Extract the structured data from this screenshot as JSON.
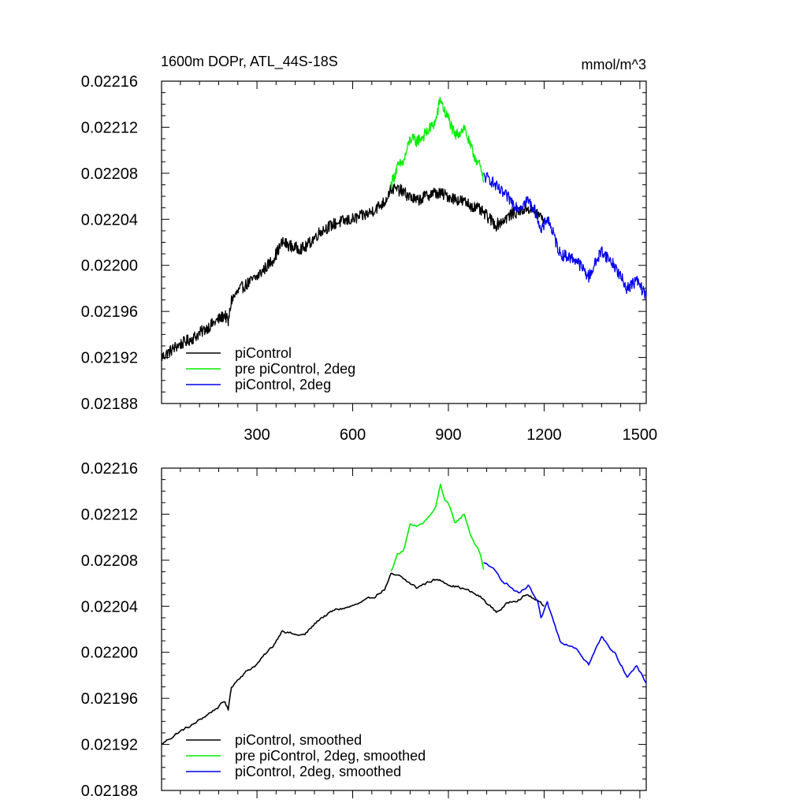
{
  "chart_data": [
    {
      "type": "line",
      "title": "1600m DOPr, ATL_44S-18S",
      "units": "mmol/m^3",
      "xlim": [
        1,
        1520
      ],
      "ylim": [
        0.02188,
        0.02216
      ],
      "xticks": [
        300,
        600,
        900,
        1200,
        1500
      ],
      "xtick_labels": [
        "300",
        "600",
        "900",
        "1200",
        "1500"
      ],
      "yticks": [
        0.02188,
        0.02192,
        0.02196,
        0.022,
        0.02204,
        0.02208,
        0.02212,
        0.02216
      ],
      "ytick_labels": [
        "0.02188",
        "0.02192",
        "0.02196",
        "0.02200",
        "0.02204",
        "0.02208",
        "0.02212",
        "0.02216"
      ],
      "legend_position": "bottom-left",
      "series": [
        {
          "name": "piControl",
          "color": "#000000",
          "x": [
            1,
            50,
            100,
            150,
            200,
            210,
            220,
            250,
            300,
            350,
            380,
            420,
            450,
            500,
            550,
            600,
            650,
            700,
            720,
            750,
            800,
            850,
            880,
            900,
            950,
            1000,
            1050,
            1100,
            1150,
            1200
          ],
          "y": [
            0.02192,
            0.02193,
            0.021937,
            0.021947,
            0.021957,
            0.02195,
            0.02197,
            0.02198,
            0.02199,
            0.022005,
            0.02202,
            0.022015,
            0.022015,
            0.02203,
            0.022037,
            0.02204,
            0.022045,
            0.022055,
            0.022067,
            0.022065,
            0.022056,
            0.022063,
            0.022062,
            0.02206,
            0.022055,
            0.022048,
            0.022035,
            0.022045,
            0.02205,
            0.02204
          ]
        },
        {
          "name": "pre piControl, 2deg",
          "color": "#00ee00",
          "x": [
            720,
            740,
            760,
            780,
            800,
            820,
            840,
            860,
            875,
            890,
            900,
            920,
            950,
            970,
            1000,
            1010
          ],
          "y": [
            0.02207,
            0.022085,
            0.02209,
            0.02211,
            0.022108,
            0.022112,
            0.022118,
            0.022125,
            0.022145,
            0.022132,
            0.022128,
            0.022112,
            0.02212,
            0.022102,
            0.022085,
            0.022072
          ]
        },
        {
          "name": "piControl, 2deg",
          "color": "#0000ee",
          "x": [
            1010,
            1030,
            1060,
            1090,
            1120,
            1150,
            1180,
            1190,
            1210,
            1250,
            1300,
            1340,
            1380,
            1420,
            1460,
            1490,
            1520
          ],
          "y": [
            0.022077,
            0.022075,
            0.022065,
            0.022058,
            0.02205,
            0.022057,
            0.022043,
            0.022028,
            0.022042,
            0.02201,
            0.022005,
            0.02199,
            0.022013,
            0.022,
            0.02198,
            0.021987,
            0.021973
          ]
        }
      ]
    },
    {
      "type": "line",
      "title": "",
      "xlim": [
        1,
        1520
      ],
      "ylim": [
        0.02188,
        0.02216
      ],
      "xticks": [
        300,
        600,
        900,
        1200,
        1500
      ],
      "yticks": [
        0.02188,
        0.02192,
        0.02196,
        0.022,
        0.02204,
        0.02208,
        0.02212,
        0.02216
      ],
      "ytick_labels": [
        "0.02188",
        "0.02192",
        "0.02196",
        "0.02200",
        "0.02204",
        "0.02208",
        "0.02212",
        "0.02216"
      ],
      "legend_position": "bottom-left",
      "series": [
        {
          "name": "piControl, smoothed",
          "color": "#000000",
          "x": [
            1,
            50,
            100,
            150,
            200,
            210,
            220,
            250,
            300,
            350,
            380,
            420,
            450,
            500,
            550,
            600,
            650,
            700,
            720,
            750,
            800,
            850,
            880,
            900,
            950,
            1000,
            1050,
            1100,
            1150,
            1200
          ],
          "y": [
            0.02192,
            0.02193,
            0.021937,
            0.021947,
            0.021957,
            0.02195,
            0.02197,
            0.02198,
            0.02199,
            0.022005,
            0.02202,
            0.022015,
            0.022015,
            0.02203,
            0.022037,
            0.02204,
            0.022045,
            0.022055,
            0.022067,
            0.022065,
            0.022056,
            0.022063,
            0.022062,
            0.02206,
            0.022055,
            0.022048,
            0.022035,
            0.022045,
            0.02205,
            0.02204
          ]
        },
        {
          "name": "pre piControl, 2deg, smoothed",
          "color": "#00ee00",
          "x": [
            720,
            740,
            760,
            780,
            800,
            820,
            840,
            860,
            875,
            890,
            900,
            920,
            950,
            970,
            1000,
            1010
          ],
          "y": [
            0.02207,
            0.022085,
            0.02209,
            0.02211,
            0.022108,
            0.022112,
            0.022118,
            0.022125,
            0.022145,
            0.022132,
            0.022128,
            0.022112,
            0.02212,
            0.022102,
            0.022085,
            0.022072
          ]
        },
        {
          "name": "piControl, 2deg, smoothed",
          "color": "#0000ee",
          "x": [
            1010,
            1030,
            1060,
            1090,
            1120,
            1150,
            1180,
            1190,
            1210,
            1250,
            1300,
            1340,
            1380,
            1420,
            1460,
            1490,
            1520
          ],
          "y": [
            0.022077,
            0.022075,
            0.022065,
            0.022058,
            0.02205,
            0.022057,
            0.022043,
            0.022028,
            0.022042,
            0.02201,
            0.022005,
            0.02199,
            0.022013,
            0.022,
            0.02198,
            0.021987,
            0.021973
          ]
        }
      ]
    }
  ]
}
